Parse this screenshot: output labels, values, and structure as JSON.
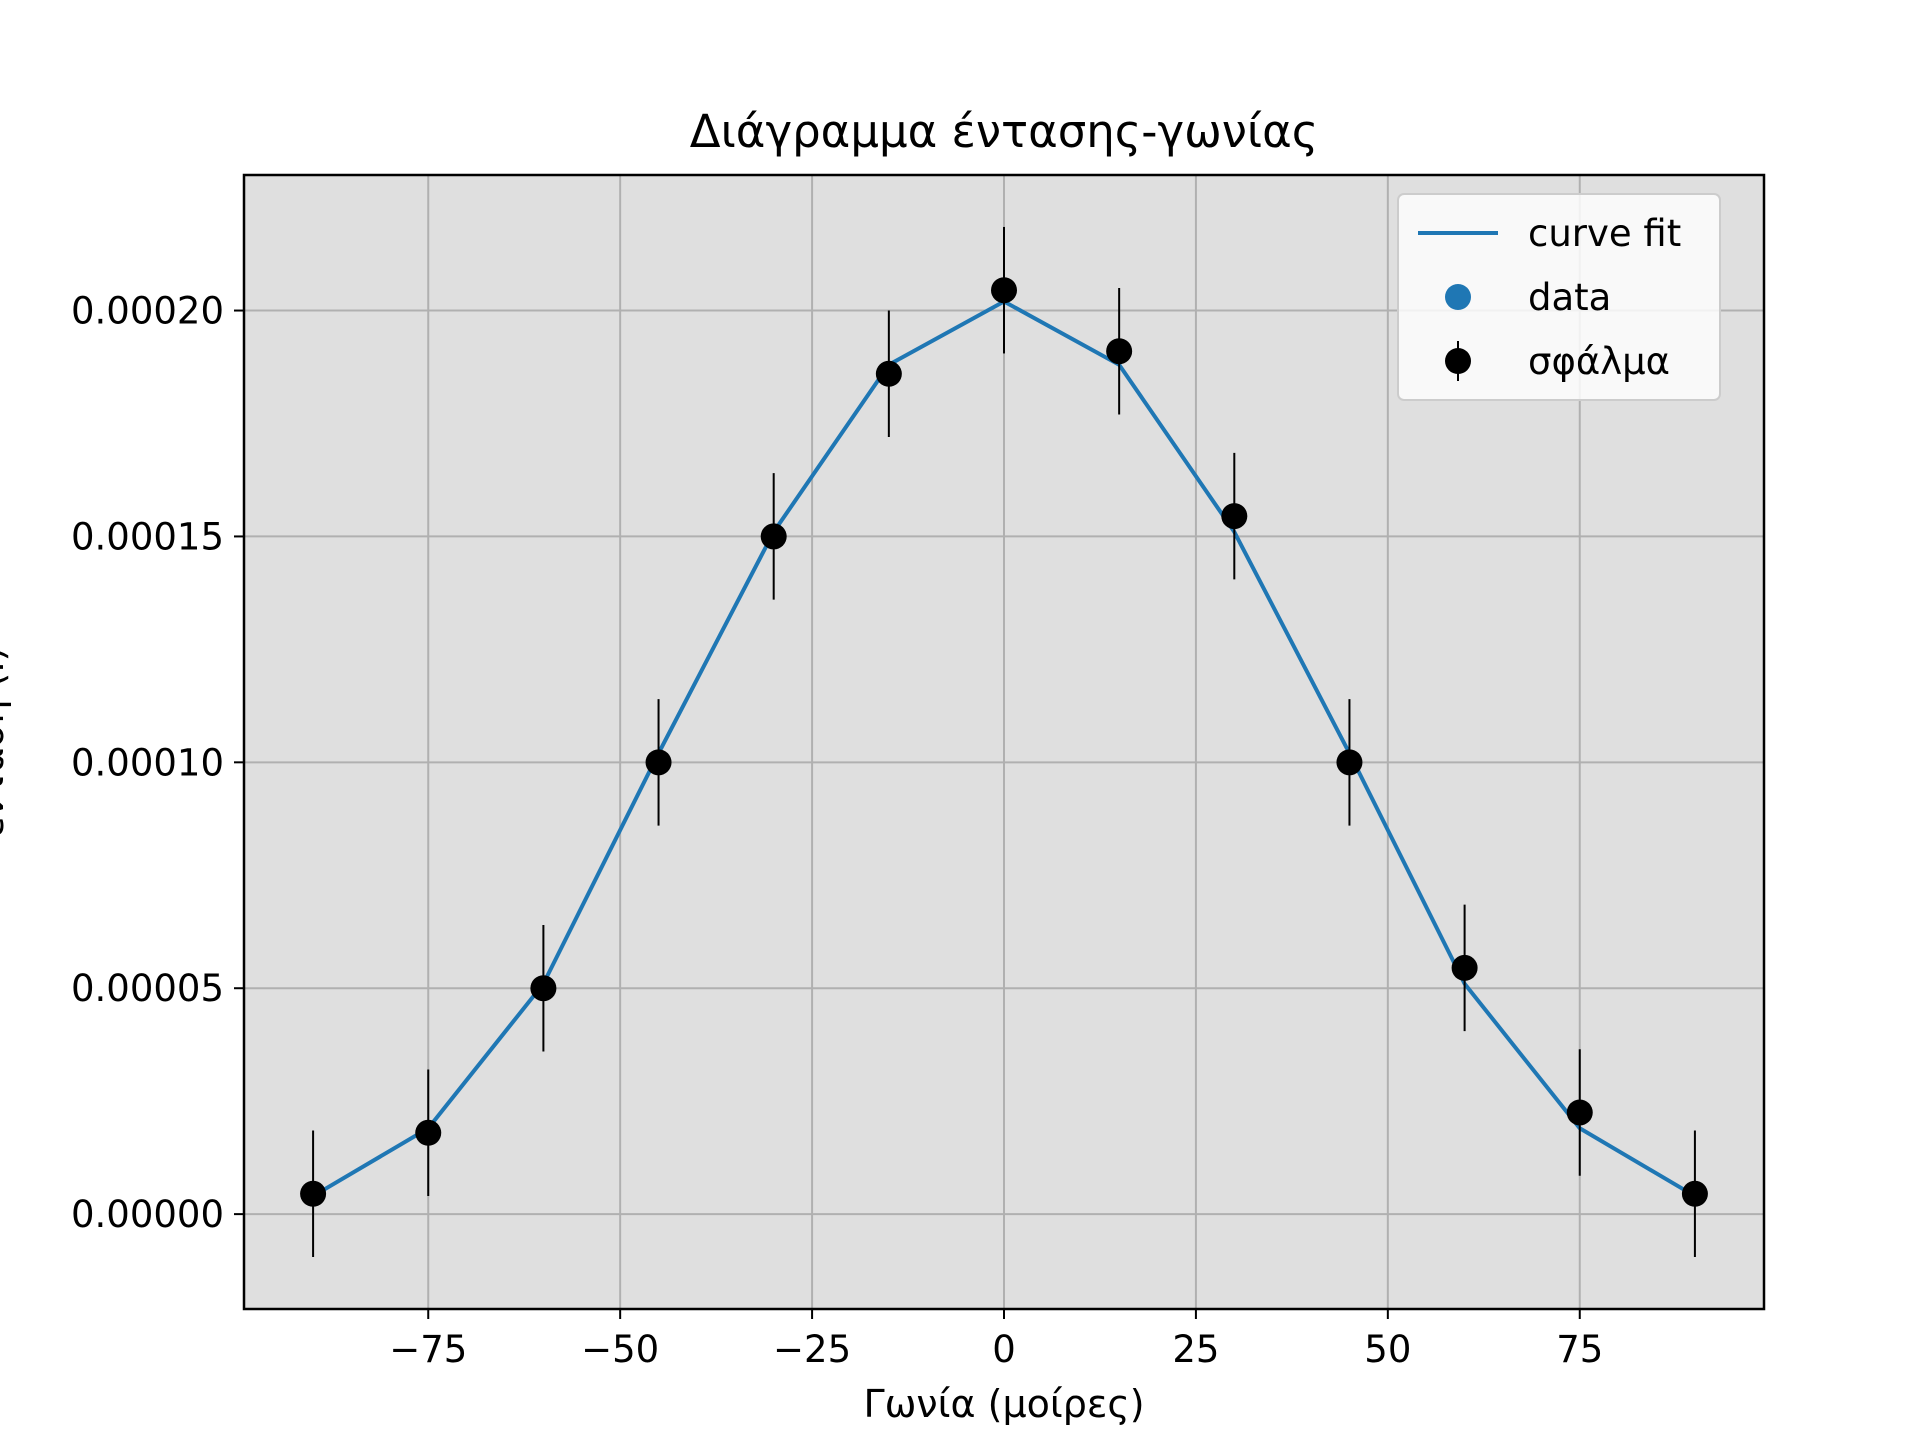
{
  "chart_data": {
    "type": "line",
    "title": "Διάγραμμα έντασης-γωνίας",
    "xlabel": "Γωνία (μοίρες)",
    "ylabel": "ένταση (I)",
    "xlim": [
      -99,
      99
    ],
    "ylim": [
      -2.1e-05,
      0.00023
    ],
    "xticks": [
      -75,
      -50,
      -25,
      0,
      25,
      50,
      75
    ],
    "xtick_labels": [
      "−75",
      "−50",
      "−25",
      "0",
      "25",
      "50",
      "75"
    ],
    "yticks": [
      0,
      5e-05,
      0.0001,
      0.00015,
      0.0002
    ],
    "ytick_labels": [
      "0.00000",
      "0.00005",
      "0.00010",
      "0.00015",
      "0.00020"
    ],
    "grid": true,
    "legend_position": "top-right",
    "x": [
      -90,
      -75,
      -60,
      -45,
      -30,
      -15,
      0,
      15,
      30,
      45,
      60,
      75,
      90
    ],
    "series": [
      {
        "name": "curve fit",
        "kind": "line",
        "color": "#1f77b4",
        "values": [
          4e-06,
          1.9e-05,
          5.1e-05,
          0.000102,
          0.000151,
          0.000188,
          0.000202,
          0.000188,
          0.000151,
          0.000102,
          5.1e-05,
          1.9e-05,
          4e-06
        ]
      },
      {
        "name": "data",
        "kind": "scatter",
        "color": "#1f77b4",
        "values": [
          4.5e-06,
          1.8e-05,
          5e-05,
          0.0001,
          0.00015,
          0.000186,
          0.0002045,
          0.000191,
          0.0001545,
          0.0001,
          5.45e-05,
          2.25e-05,
          4.5e-06
        ]
      },
      {
        "name": "σφάλμα",
        "kind": "errorbar",
        "color": "#000000",
        "values": [
          4.5e-06,
          1.8e-05,
          5e-05,
          0.0001,
          0.00015,
          0.000186,
          0.0002045,
          0.000191,
          0.0001545,
          0.0001,
          5.45e-05,
          2.25e-05,
          4.5e-06
        ],
        "yerr": 1.4e-05
      }
    ],
    "colors": {
      "plot_background": "#dfdfdf",
      "grid": "#b0b0b0",
      "fit_line": "#1f77b4",
      "markers": "#000000"
    }
  }
}
